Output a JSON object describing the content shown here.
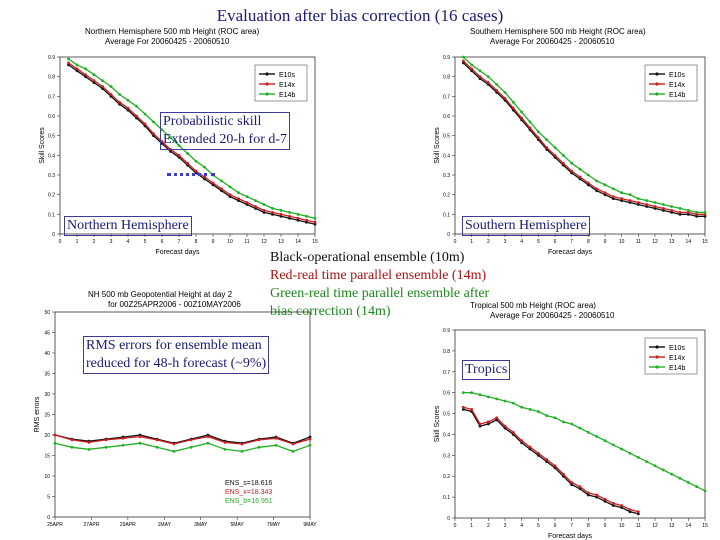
{
  "slide": {
    "title": "Evaluation after bias correction (16 cases)",
    "annotations": {
      "prob_skill_line1": "Probabilistic skill",
      "prob_skill_line2": "Extended 20-h for d-7",
      "nh_label": "Northern Hemisphere",
      "sh_label": "Southern Hemisphere",
      "tropics_label": "Tropics",
      "rms_line1": "RMS errors for ensemble mean",
      "rms_line2": "reduced for 48-h forecast (~9%)",
      "legend_black": "Black-operational ensemble (10m)",
      "legend_red": "Red-real time parallel ensemble (14m)",
      "legend_green_line1": "Green-real time parallel ensemble after",
      "legend_green_line2": "bias correction (14m)"
    }
  },
  "colors": {
    "black": "#111111",
    "red": "#cc1f1f",
    "green": "#22b022",
    "annot_blue": "#1a1a7a",
    "annot_red": "#b01010",
    "annot_green": "#1a8a1a"
  },
  "chart_data": [
    {
      "type": "line",
      "title_line1": "Northern Hemisphere 500 mb Height (ROC area)",
      "title_line2": "Average For 20060425 - 20060510",
      "xlabel": "Forecast days",
      "ylabel": "Skill Scores",
      "xlim": [
        0,
        15
      ],
      "ylim": [
        0,
        0.9
      ],
      "xticks": [
        "0",
        "1",
        "2",
        "3",
        "4",
        "5",
        "6",
        "7",
        "8",
        "9",
        "10",
        "11",
        "12",
        "13",
        "14",
        "15"
      ],
      "yticks": [
        "0",
        "0.1",
        "0.2",
        "0.3",
        "0.4",
        "0.5",
        "0.6",
        "0.7",
        "0.8",
        "0.9"
      ],
      "legend": [
        "E10s",
        "E14x",
        "E14b"
      ],
      "x": [
        0.5,
        1,
        1.5,
        2,
        2.5,
        3,
        3.5,
        4,
        4.5,
        5,
        5.5,
        6,
        6.5,
        7,
        7.5,
        8,
        8.5,
        9,
        9.5,
        10,
        10.5,
        11,
        11.5,
        12,
        12.5,
        13,
        13.5,
        14,
        14.5,
        15
      ],
      "series": [
        {
          "name": "E10s",
          "color": "black",
          "values": [
            0.86,
            0.83,
            0.8,
            0.77,
            0.74,
            0.7,
            0.66,
            0.63,
            0.59,
            0.55,
            0.5,
            0.46,
            0.42,
            0.39,
            0.35,
            0.31,
            0.28,
            0.25,
            0.22,
            0.19,
            0.17,
            0.15,
            0.13,
            0.11,
            0.1,
            0.09,
            0.08,
            0.07,
            0.06,
            0.05
          ]
        },
        {
          "name": "E14x",
          "color": "red",
          "values": [
            0.87,
            0.84,
            0.81,
            0.78,
            0.75,
            0.71,
            0.67,
            0.64,
            0.6,
            0.56,
            0.51,
            0.47,
            0.43,
            0.4,
            0.36,
            0.32,
            0.29,
            0.26,
            0.23,
            0.2,
            0.18,
            0.16,
            0.14,
            0.12,
            0.11,
            0.1,
            0.09,
            0.08,
            0.07,
            0.06
          ]
        },
        {
          "name": "E14b",
          "color": "green",
          "values": [
            0.89,
            0.86,
            0.84,
            0.81,
            0.78,
            0.75,
            0.71,
            0.68,
            0.65,
            0.61,
            0.57,
            0.53,
            0.49,
            0.45,
            0.41,
            0.37,
            0.34,
            0.3,
            0.27,
            0.24,
            0.21,
            0.19,
            0.17,
            0.15,
            0.13,
            0.12,
            0.11,
            0.1,
            0.09,
            0.08
          ]
        }
      ]
    },
    {
      "type": "line",
      "title_line1": "Southern Hemisphere 500 mb Height (ROC area)",
      "title_line2": "Average For 20060425 - 20060510",
      "xlabel": "Forecast days",
      "ylabel": "Skill Scores",
      "xlim": [
        0,
        15
      ],
      "ylim": [
        0,
        0.9
      ],
      "xticks": [
        "0",
        "1",
        "2",
        "3",
        "4",
        "5",
        "6",
        "7",
        "8",
        "9",
        "10",
        "11",
        "12",
        "13",
        "14",
        "15"
      ],
      "yticks": [
        "0",
        "0.1",
        "0.2",
        "0.3",
        "0.4",
        "0.5",
        "0.6",
        "0.7",
        "0.8",
        "0.9"
      ],
      "legend": [
        "E10s",
        "E14x",
        "E14b"
      ],
      "x": [
        0.5,
        1,
        1.5,
        2,
        2.5,
        3,
        3.5,
        4,
        4.5,
        5,
        5.5,
        6,
        6.5,
        7,
        7.5,
        8,
        8.5,
        9,
        9.5,
        10,
        10.5,
        11,
        11.5,
        12,
        12.5,
        13,
        13.5,
        14,
        14.5,
        15
      ],
      "series": [
        {
          "name": "E10s",
          "color": "black",
          "values": [
            0.87,
            0.83,
            0.79,
            0.76,
            0.72,
            0.68,
            0.63,
            0.58,
            0.53,
            0.48,
            0.43,
            0.39,
            0.35,
            0.31,
            0.28,
            0.25,
            0.22,
            0.2,
            0.18,
            0.17,
            0.16,
            0.15,
            0.14,
            0.13,
            0.12,
            0.11,
            0.1,
            0.1,
            0.09,
            0.09
          ]
        },
        {
          "name": "E14x",
          "color": "red",
          "values": [
            0.88,
            0.84,
            0.8,
            0.77,
            0.73,
            0.69,
            0.64,
            0.59,
            0.54,
            0.49,
            0.44,
            0.4,
            0.36,
            0.32,
            0.29,
            0.26,
            0.23,
            0.21,
            0.19,
            0.18,
            0.17,
            0.16,
            0.15,
            0.14,
            0.13,
            0.12,
            0.11,
            0.11,
            0.1,
            0.1
          ]
        },
        {
          "name": "E14b",
          "color": "green",
          "values": [
            0.9,
            0.86,
            0.83,
            0.8,
            0.76,
            0.72,
            0.67,
            0.62,
            0.57,
            0.52,
            0.48,
            0.44,
            0.4,
            0.36,
            0.33,
            0.3,
            0.27,
            0.25,
            0.23,
            0.21,
            0.2,
            0.18,
            0.17,
            0.16,
            0.15,
            0.14,
            0.13,
            0.12,
            0.11,
            0.11
          ]
        }
      ]
    },
    {
      "type": "line",
      "title_line1": "NH 500 mb Geopotential Height at day 2",
      "title_line2": "for 00Z25APR2006 - 00Z10MAY2006",
      "xlabel": "",
      "ylabel": "RMS errors",
      "xlim": [
        0,
        15
      ],
      "ylim": [
        0,
        50
      ],
      "xticks": [
        "25APR",
        "27APR",
        "29APR",
        "1MAY",
        "3MAY",
        "5MAY",
        "7MAY",
        "9MAY"
      ],
      "yticks": [
        "0",
        "5",
        "10",
        "15",
        "20",
        "25",
        "30",
        "35",
        "40",
        "45",
        "50"
      ],
      "stats": [
        "ENS_s=18.616",
        "ENS_x=18.343",
        "ENS_b=16.951"
      ],
      "x": [
        0,
        1,
        2,
        3,
        4,
        5,
        6,
        7,
        8,
        9,
        10,
        11,
        12,
        13,
        14,
        15
      ],
      "series": [
        {
          "name": "ENS_s",
          "color": "black",
          "values": [
            20,
            19,
            18.5,
            19,
            19.5,
            20,
            19,
            18,
            19,
            20,
            18.5,
            18,
            19,
            19.5,
            18,
            19.5
          ]
        },
        {
          "name": "ENS_x",
          "color": "red",
          "values": [
            20,
            18.8,
            18.2,
            18.8,
            19.2,
            19.6,
            18.8,
            17.8,
            18.8,
            19.6,
            18.2,
            17.8,
            18.8,
            19.2,
            17.8,
            19
          ]
        },
        {
          "name": "ENS_b",
          "color": "green",
          "values": [
            18,
            17,
            16.5,
            17,
            17.5,
            18,
            17,
            16,
            17,
            18,
            16.5,
            16,
            17,
            17.5,
            16,
            17.5
          ]
        }
      ]
    },
    {
      "type": "line",
      "title_line1": "Tropical 500 mb Height (ROC area)",
      "title_line2": "Average For 20060425 - 20060510",
      "xlabel": "Forecast days",
      "ylabel": "Skill Scores",
      "xlim": [
        0,
        15
      ],
      "ylim": [
        0,
        0.9
      ],
      "xticks": [
        "0",
        "1",
        "2",
        "3",
        "4",
        "5",
        "6",
        "7",
        "8",
        "9",
        "10",
        "11",
        "12",
        "13",
        "14",
        "15"
      ],
      "yticks": [
        "0",
        "0.1",
        "0.2",
        "0.3",
        "0.4",
        "0.5",
        "0.6",
        "0.7",
        "0.8",
        "0.9"
      ],
      "legend": [
        "E10s",
        "E14x",
        "E14b"
      ],
      "x": [
        0.5,
        1,
        1.5,
        2,
        2.5,
        3,
        3.5,
        4,
        4.5,
        5,
        5.5,
        6,
        6.5,
        7,
        7.5,
        8,
        8.5,
        9,
        9.5,
        10,
        10.5,
        11,
        11.5,
        12,
        12.5,
        13,
        13.5,
        14,
        14.5,
        15
      ],
      "series": [
        {
          "name": "E10s",
          "color": "black",
          "values": [
            0.52,
            0.51,
            0.44,
            0.45,
            0.47,
            0.43,
            0.4,
            0.36,
            0.33,
            0.3,
            0.27,
            0.24,
            0.2,
            0.16,
            0.14,
            0.11,
            0.1,
            0.08,
            0.06,
            0.05,
            0.03,
            0.02,
            null,
            null,
            null,
            null,
            null,
            null,
            null,
            null
          ]
        },
        {
          "name": "E14x",
          "color": "red",
          "values": [
            0.53,
            0.52,
            0.45,
            0.46,
            0.48,
            0.44,
            0.41,
            0.37,
            0.34,
            0.31,
            0.28,
            0.25,
            0.21,
            0.17,
            0.15,
            0.12,
            0.11,
            0.09,
            0.07,
            0.06,
            0.04,
            0.03,
            null,
            null,
            null,
            null,
            null,
            null,
            null,
            null
          ]
        },
        {
          "name": "E14b",
          "color": "green",
          "values": [
            0.6,
            0.6,
            0.59,
            0.58,
            0.57,
            0.56,
            0.55,
            0.53,
            0.52,
            0.51,
            0.49,
            0.48,
            0.46,
            0.45,
            0.43,
            0.41,
            0.39,
            0.37,
            0.35,
            0.33,
            0.31,
            0.29,
            0.27,
            0.25,
            0.23,
            0.21,
            0.19,
            0.17,
            0.15,
            0.13
          ]
        }
      ]
    }
  ]
}
